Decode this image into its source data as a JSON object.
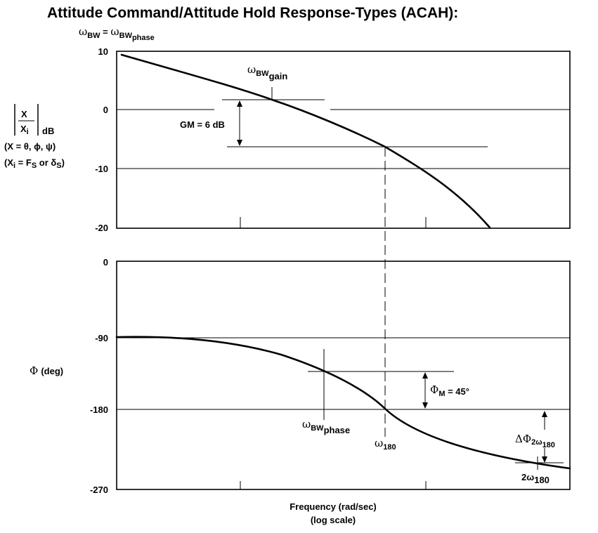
{
  "title": "Attitude Command/Attitude Hold Response-Types (ACAH):",
  "subtitle": {
    "omega": "ω",
    "bw": "BW",
    "equals": " = ",
    "phase_sub": "phase"
  },
  "magnitude_axis": {
    "x_num": "X",
    "x_den": "X",
    "den_sub": "i",
    "unit": "dB",
    "line2": "(X = θ, ϕ, ψ)",
    "line3_pre": "(X",
    "line3_sub": "i",
    "line3_mid": " = F",
    "line3_sub2": "S",
    "line3_or": " or δ",
    "line3_sub3": "S",
    "line3_end": ")",
    "ticks": [
      "10",
      "0",
      "-10",
      "-20"
    ]
  },
  "phase_axis": {
    "label_sym": "Φ",
    "label_unit": "(deg)",
    "ticks": [
      "0",
      "-90",
      "-180",
      "-270"
    ]
  },
  "annotations": {
    "bw_gain_omega": "ω",
    "bw_gain_bw": "BW",
    "bw_gain_sub": "gain",
    "gm": "GM = 6 dB",
    "phi_m_sym": "Φ",
    "phi_m_sub": "M",
    "phi_m_val": " = 45°",
    "bw_phase_omega": "ω",
    "bw_phase_bw": "BW",
    "bw_phase_sub": "phase",
    "w180_omega": "ω",
    "w180_sub": "180",
    "delta_sym": "ΔΦ",
    "delta_mid": "2ω",
    "delta_sub": "180",
    "two_w180_pre": "2ω",
    "two_w180_sub": "180"
  },
  "xaxis": {
    "line1": "Frequency (rad/sec)",
    "line2": "(log scale)"
  },
  "chart_data": {
    "type": "line",
    "title": "Attitude Command/Attitude Hold Response-Types (ACAH):",
    "xlabel": "Frequency (rad/sec) (log scale)",
    "series": [
      {
        "name": "magnitude (dB)",
        "ylim": [
          -20,
          10
        ]
      },
      {
        "name": "phase (deg)",
        "ylim": [
          -270,
          0
        ]
      }
    ],
    "reference_values": {
      "gain_margin_db": 6,
      "phase_margin_deg": 45,
      "phase_crossover_deg": -180
    }
  }
}
